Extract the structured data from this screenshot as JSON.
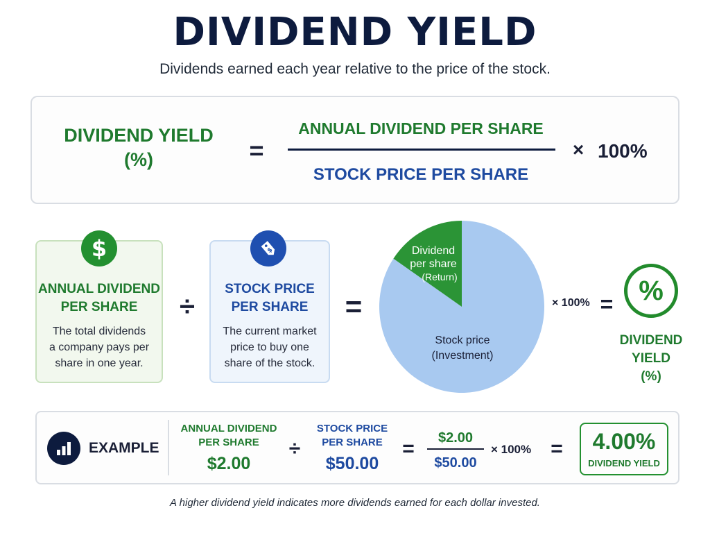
{
  "header": {
    "title": "DIVIDEND YIELD",
    "subtitle": "Dividends earned each year relative to the price of the stock."
  },
  "formula": {
    "lhs_line1": "DIVIDEND YIELD",
    "lhs_line2": "(%)",
    "equals": "=",
    "numerator": "ANNUAL DIVIDEND PER SHARE",
    "denominator": "STOCK PRICE PER SHARE",
    "times": "×",
    "multiplier": "100%"
  },
  "cards": {
    "dividend": {
      "icon": "dollar-sign-icon",
      "title_line1": "ANNUAL DIVIDEND",
      "title_line2": "PER SHARE",
      "desc_line1": "The total dividends",
      "desc_line2": "a company pays per",
      "desc_line3": "share in one year.",
      "color": "#1f7a2e"
    },
    "price": {
      "icon": "price-tag-icon",
      "title_line1": "STOCK PRICE",
      "title_line2": "PER SHARE",
      "desc_line1": "The current market",
      "desc_line2": "price to buy one",
      "desc_line3": "share of the stock.",
      "color": "#1e4aa0"
    }
  },
  "operators": {
    "divide": "÷",
    "equals": "="
  },
  "pie": {
    "return_line1": "Dividend",
    "return_line2": "per share",
    "return_line3": "(Return)",
    "investment_line1": "Stock price",
    "investment_line2": "(Investment)",
    "return_color": "#2b9436",
    "investment_color": "#a8c9f0"
  },
  "result": {
    "times_text": "× 100%",
    "equals": "=",
    "icon": "percent-icon",
    "symbol": "%",
    "label_line1": "DIVIDEND",
    "label_line2": "YIELD",
    "label_line3": "(%)"
  },
  "example": {
    "icon": "bar-chart-icon",
    "label": "EXAMPLE",
    "dividend_title_line1": "ANNUAL DIVIDEND",
    "dividend_title_line2": "PER SHARE",
    "dividend_value": "$2.00",
    "divide": "÷",
    "price_title_line1": "STOCK PRICE",
    "price_title_line2": "PER SHARE",
    "price_value": "$50.00",
    "equals1": "=",
    "fraction_num": "$2.00",
    "fraction_den": "$50.00",
    "times_text": "× 100%",
    "equals2": "=",
    "result_value": "4.00%",
    "result_label": "DIVIDEND YIELD"
  },
  "footer": {
    "note": "A higher dividend yield indicates more dividends earned for each dollar invested."
  }
}
